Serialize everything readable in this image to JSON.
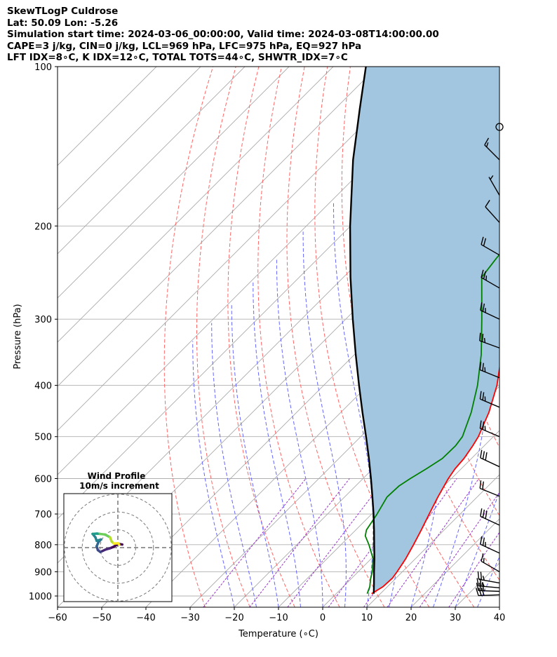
{
  "title_lines": [
    "SkewTLogP Culdrose",
    "Lat: 50.09   Lon: -5.26",
    "Simulation start time: 2024-03-06_00:00:00, Valid time: 2024-03-08T14:00:00.00",
    "CAPE=3 j/kg, CIN=0 j/kg, LCL=969 hPa, LFC=975 hPa, EQ=927 hPa",
    "LFT IDX=8∘C, K IDX=12∘C, TOTAL TOTS=44∘C, SHWTR_IDX=7∘C"
  ],
  "colors": {
    "temperature": "#ff0000",
    "dewpoint": "#008000",
    "parcel": "#000000",
    "cape_fill": "#a3c6e0",
    "dry_adiabats": "#ff6666",
    "moist_adiabats": "#6666ff",
    "mixing_ratio": "#9933cc",
    "isotherms": "#aaaaaa"
  },
  "chart_data": {
    "type": "skewt",
    "xlabel": "Temperature (∘C)",
    "ylabel": "Pressure (hPa)",
    "xlim": [
      -60,
      40
    ],
    "ylim": [
      1050,
      100
    ],
    "y_scale": "log",
    "skew_degrees": 45,
    "grid": true,
    "x_ticks": [
      -60,
      -50,
      -40,
      -30,
      -20,
      -10,
      0,
      10,
      20,
      30,
      40
    ],
    "y_ticks": [
      1000,
      900,
      800,
      700,
      600,
      500,
      400,
      300,
      200,
      100
    ],
    "series": [
      {
        "key": "temperature",
        "points": [
          [
            990,
            8.0
          ],
          [
            960,
            9.0
          ],
          [
            925,
            9.2
          ],
          [
            900,
            8.8
          ],
          [
            850,
            7.8
          ],
          [
            800,
            6.4
          ],
          [
            750,
            4.8
          ],
          [
            700,
            3.0
          ],
          [
            650,
            1.1
          ],
          [
            600,
            -0.7
          ],
          [
            575,
            -1.4
          ],
          [
            550,
            -1.7
          ],
          [
            520,
            -2.6
          ],
          [
            500,
            -3.4
          ],
          [
            450,
            -6.5
          ],
          [
            400,
            -10.8
          ],
          [
            350,
            -16.7
          ],
          [
            300,
            -24.0
          ],
          [
            260,
            -30.4
          ],
          [
            250,
            -32.9
          ],
          [
            240,
            -32.4
          ],
          [
            230,
            -33.5
          ],
          [
            220,
            -35.1
          ],
          [
            210,
            -38.2
          ],
          [
            200,
            -41.4
          ],
          [
            190,
            -44.3
          ],
          [
            180,
            -46.4
          ],
          [
            170,
            -49.1
          ],
          [
            160,
            -50.7
          ],
          [
            150,
            -52.4
          ],
          [
            140,
            -54.3
          ],
          [
            130,
            -56.4
          ],
          [
            120,
            -58.7
          ],
          [
            115,
            -60.4
          ],
          [
            110,
            -62.3
          ],
          [
            105,
            -64.2
          ],
          [
            100,
            -65.6
          ]
        ]
      },
      {
        "key": "dewpoint",
        "points": [
          [
            990,
            7.0
          ],
          [
            960,
            6.0
          ],
          [
            930,
            4.5
          ],
          [
            900,
            3.2
          ],
          [
            850,
            0.4
          ],
          [
            800,
            -3.7
          ],
          [
            770,
            -6.5
          ],
          [
            750,
            -7.6
          ],
          [
            700,
            -8.8
          ],
          [
            650,
            -10.4
          ],
          [
            620,
            -10.2
          ],
          [
            600,
            -9.3
          ],
          [
            575,
            -7.9
          ],
          [
            550,
            -6.6
          ],
          [
            520,
            -6.5
          ],
          [
            500,
            -7.0
          ],
          [
            450,
            -10.5
          ],
          [
            400,
            -15.2
          ],
          [
            350,
            -21.3
          ],
          [
            300,
            -29.2
          ],
          [
            250,
            -38.7
          ],
          [
            240,
            -39.2
          ],
          [
            230,
            -39.7
          ],
          [
            220,
            -40.1
          ],
          [
            210,
            -41.4
          ],
          [
            200,
            -42.8
          ],
          [
            190,
            -45.7
          ],
          [
            180,
            -49.7
          ],
          [
            175,
            -51.6
          ],
          [
            170,
            -52.8
          ],
          [
            160,
            -52.4
          ],
          [
            150,
            -51.9
          ],
          [
            140,
            -51.8
          ],
          [
            130,
            -51.3
          ],
          [
            120,
            -51.4
          ],
          [
            110,
            -51.8
          ],
          [
            100,
            -52.9
          ]
        ]
      },
      {
        "key": "parcel",
        "points": [
          [
            990,
            8.5
          ],
          [
            950,
            6.4
          ],
          [
            900,
            3.6
          ],
          [
            850,
            0.7
          ],
          [
            800,
            -2.5
          ],
          [
            750,
            -5.9
          ],
          [
            700,
            -9.6
          ],
          [
            650,
            -13.7
          ],
          [
            600,
            -18.2
          ],
          [
            550,
            -23.2
          ],
          [
            500,
            -28.8
          ],
          [
            450,
            -35.1
          ],
          [
            400,
            -42.0
          ],
          [
            350,
            -49.7
          ],
          [
            300,
            -58.4
          ],
          [
            250,
            -68.4
          ],
          [
            200,
            -80.1
          ],
          [
            150,
            -94.4
          ],
          [
            120,
            -104.5
          ],
          [
            100,
            -112.6
          ]
        ]
      }
    ],
    "wind_barbs": [
      {
        "p": 130,
        "barb": "calm"
      },
      {
        "p": 150,
        "speed_kt": 15,
        "dir_deg": 315
      },
      {
        "p": 175,
        "speed_kt": 5,
        "dir_deg": 330
      },
      {
        "p": 197,
        "speed_kt": 10,
        "dir_deg": 318
      },
      {
        "p": 227,
        "speed_kt": 20,
        "dir_deg": 300
      },
      {
        "p": 262,
        "speed_kt": 25,
        "dir_deg": 300
      },
      {
        "p": 300,
        "speed_kt": 25,
        "dir_deg": 295
      },
      {
        "p": 340,
        "speed_kt": 25,
        "dir_deg": 290
      },
      {
        "p": 387,
        "speed_kt": 25,
        "dir_deg": 292
      },
      {
        "p": 440,
        "speed_kt": 25,
        "dir_deg": 293
      },
      {
        "p": 500,
        "speed_kt": 25,
        "dir_deg": 293
      },
      {
        "p": 570,
        "speed_kt": 30,
        "dir_deg": 295
      },
      {
        "p": 648,
        "speed_kt": 20,
        "dir_deg": 292
      },
      {
        "p": 735,
        "speed_kt": 30,
        "dir_deg": 295
      },
      {
        "p": 830,
        "speed_kt": 25,
        "dir_deg": 295
      },
      {
        "p": 900,
        "speed_kt": 15,
        "dir_deg": 300
      },
      {
        "p": 945,
        "speed_kt": 25,
        "dir_deg": 280
      },
      {
        "p": 965,
        "speed_kt": 25,
        "dir_deg": 275
      },
      {
        "p": 980,
        "speed_kt": 30,
        "dir_deg": 272
      },
      {
        "p": 995,
        "speed_kt": 30,
        "dir_deg": 268
      }
    ],
    "inset": {
      "title_line1": "Wind Profile",
      "title_line2": "10m/s increment",
      "rings_ms": [
        10,
        20,
        30
      ],
      "u_range": [
        -10,
        10
      ],
      "v_range": [
        -10,
        10
      ],
      "hodograph": [
        [
          1.4,
          1.0
        ],
        [
          0.2,
          1.2
        ],
        [
          -1.5,
          0.2
        ],
        [
          -2.5,
          -0.2
        ],
        [
          -3.9,
          -0.6
        ],
        [
          -5.6,
          -1.4
        ],
        [
          -6.4,
          -0.8
        ],
        [
          -6.8,
          0.4
        ],
        [
          -6.2,
          1.8
        ],
        [
          -5.4,
          2.6
        ],
        [
          -6.8,
          2.2
        ],
        [
          -7.2,
          3.3
        ],
        [
          -8.1,
          4.4
        ],
        [
          -6.7,
          4.5
        ],
        [
          -5.8,
          4.4
        ],
        [
          -4.1,
          4.2
        ],
        [
          -2.5,
          3.3
        ],
        [
          -2.0,
          2.0
        ],
        [
          -1.3,
          1.3
        ],
        [
          0.1,
          1.4
        ],
        [
          0.4,
          1.0
        ]
      ]
    }
  }
}
